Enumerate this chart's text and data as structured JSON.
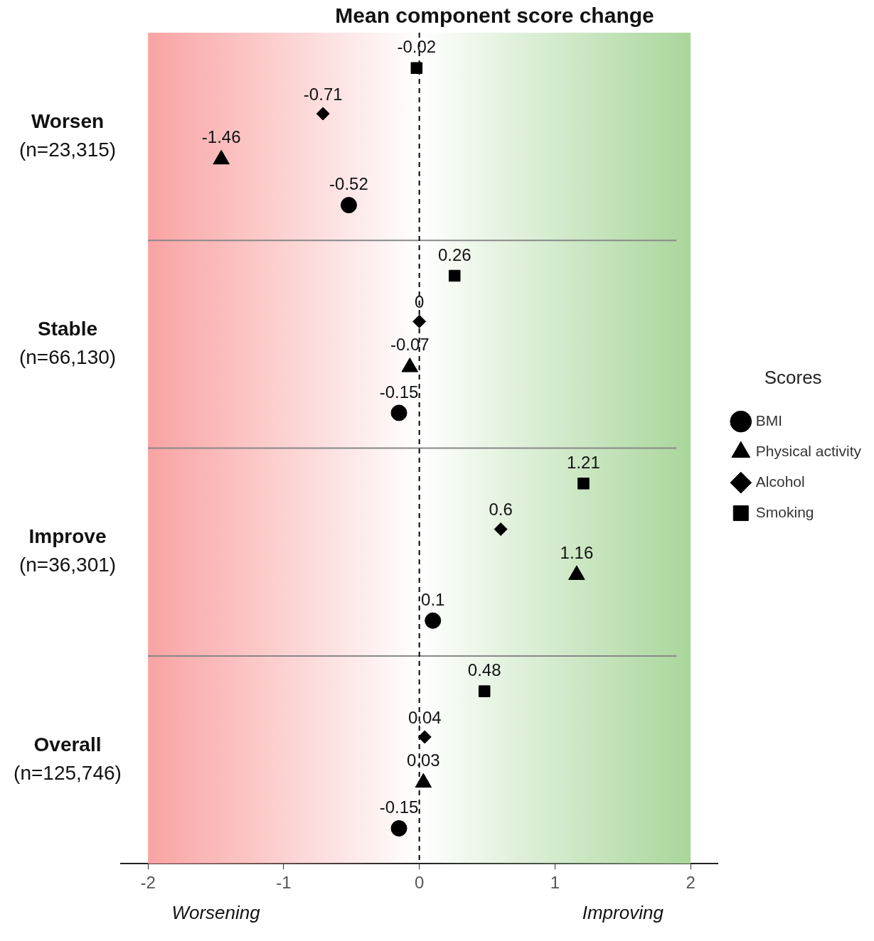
{
  "chart_data": {
    "type": "scatter",
    "orientation": "horizontal",
    "title": "Mean component score change",
    "categories": [
      "Worsen\n(n=23,315)",
      "Stable\n(n=66,130)",
      "Improve\n(n=36,301)",
      "Overall\n(n=125,746)"
    ],
    "series": [
      {
        "name": "BMI",
        "color": "#000000",
        "marker": "circle",
        "values": [
          -0.52,
          -0.15,
          0.1,
          -0.15
        ]
      },
      {
        "name": "Physical activity",
        "color": "#000000",
        "marker": "triangle",
        "values": [
          -1.46,
          -0.07,
          1.16,
          0.03
        ]
      },
      {
        "name": "Alcohol",
        "color": "#000000",
        "marker": "diamond",
        "values": [
          -0.71,
          0,
          0.6,
          0.04
        ]
      },
      {
        "name": "Smoking",
        "color": "#000000",
        "marker": "square",
        "values": [
          -0.02,
          0.26,
          1.21,
          0.48
        ]
      }
    ],
    "xlim": [
      -2.2,
      2.2
    ],
    "xticks": [
      -2,
      -1,
      0,
      1,
      2
    ],
    "ref_lines": [
      {
        "axis": "x",
        "value": 0,
        "line_style": "dashed",
        "color": "#000000"
      }
    ],
    "bands": [
      {
        "axis": "x",
        "from": -2,
        "to": 0,
        "color": "#f9a3a3",
        "label": "Worsening"
      },
      {
        "axis": "x",
        "from": 0,
        "to": 2,
        "color": "#a9d69b",
        "label": "Improving"
      }
    ],
    "data_labels": true,
    "grid": false,
    "legend": "right",
    "legend_title": "Scores"
  }
}
